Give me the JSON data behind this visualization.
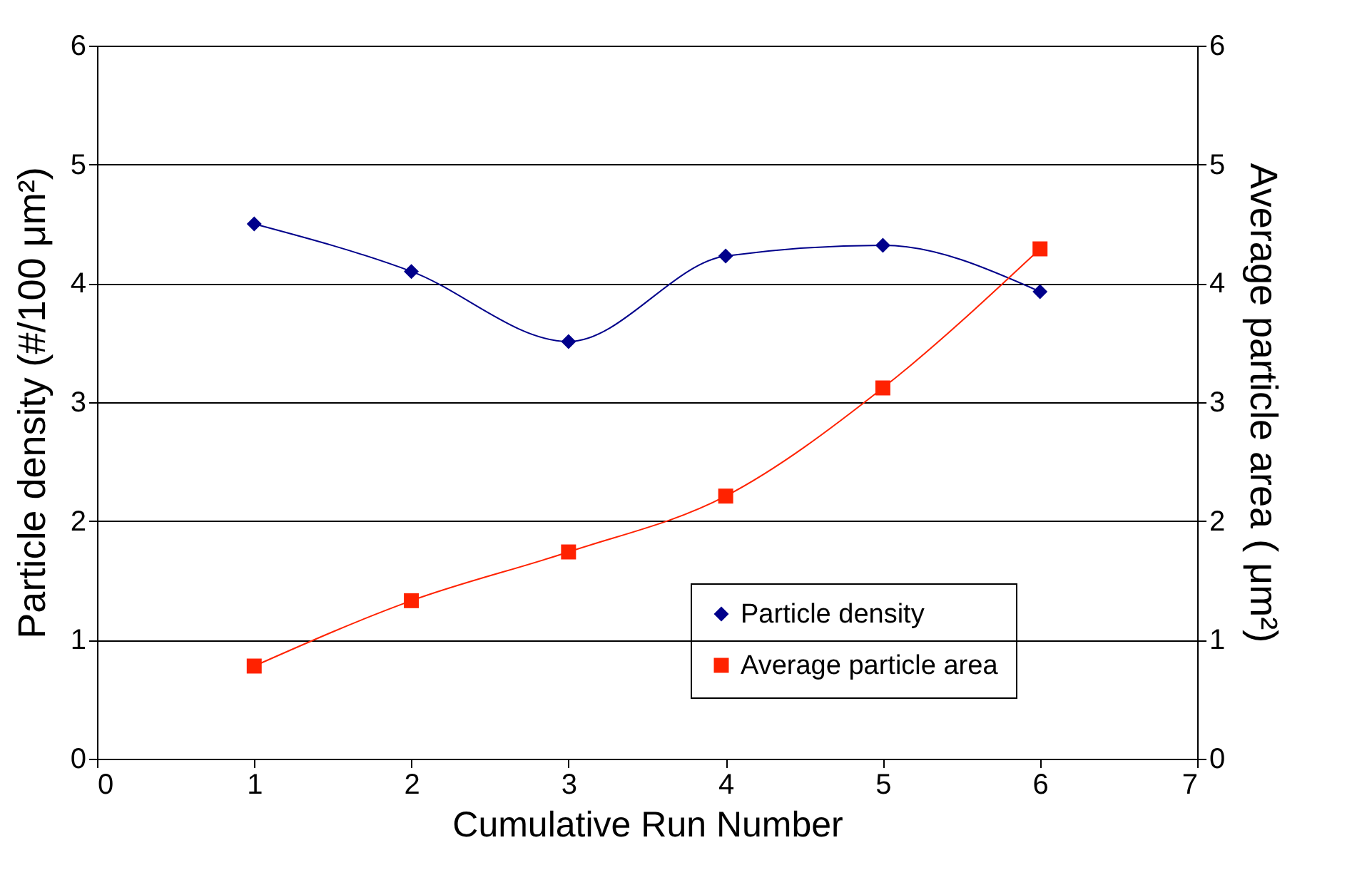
{
  "chart_data": {
    "type": "line",
    "xlabel": "Cumulative Run Number",
    "ylabel": "Particle density (#/100 μm²)",
    "y2label": "Average particle area ( μm²)",
    "x": [
      1,
      2,
      3,
      4,
      5,
      6
    ],
    "series": [
      {
        "name": "Particle density",
        "color": "#00008b",
        "marker": "diamond",
        "values": [
          4.5,
          4.1,
          3.51,
          4.23,
          4.32,
          3.93
        ]
      },
      {
        "name": "Average particle area",
        "color": "#ff2200",
        "marker": "square",
        "axis": "y2",
        "values": [
          0.78,
          1.33,
          1.74,
          2.21,
          3.12,
          4.29
        ]
      }
    ],
    "xlim": [
      0,
      7
    ],
    "xticks": [
      0,
      1,
      2,
      3,
      4,
      5,
      6,
      7
    ],
    "ylim": [
      0,
      6
    ],
    "yticks": [
      0,
      1,
      2,
      3,
      4,
      5,
      6
    ],
    "y2lim": [
      0,
      6
    ],
    "y2ticks": [
      0,
      1,
      2,
      3,
      4,
      5,
      6
    ],
    "grid": "y",
    "legend": "bottom right"
  }
}
